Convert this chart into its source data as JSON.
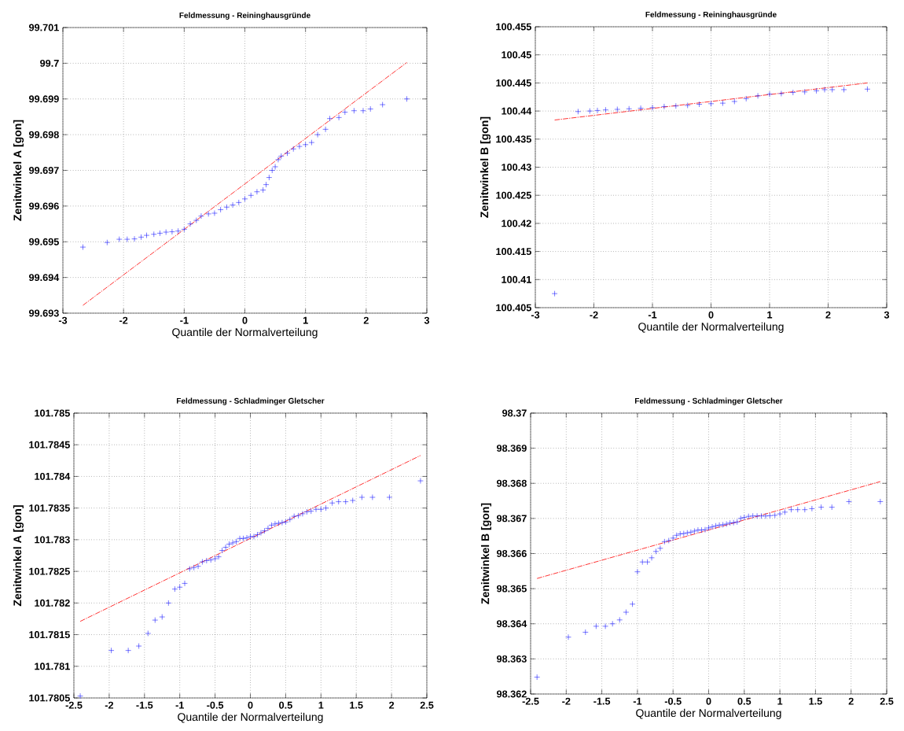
{
  "chart_data": [
    {
      "type": "scatter",
      "title": "Feldmessung - Reininghausgründe",
      "xlabel": "Quantile der Normalverteilung",
      "ylabel": "Zenitwinkel A [gon]",
      "xlim": [
        -3,
        3
      ],
      "ylim": [
        99.693,
        99.701
      ],
      "xticks": [
        -3,
        -2,
        -1,
        0,
        1,
        2,
        3
      ],
      "yticks": [
        99.693,
        99.694,
        99.695,
        99.696,
        99.697,
        99.698,
        99.699,
        99.7,
        99.701
      ],
      "grid": true,
      "series": [
        {
          "marker": "cross",
          "color": "#0000ff",
          "x": [
            -2.67,
            -2.27,
            -2.07,
            -1.94,
            -1.82,
            -1.71,
            -1.62,
            -1.5,
            -1.4,
            -1.3,
            -1.2,
            -1.1,
            -1.0,
            -0.9,
            -0.8,
            -0.72,
            -0.6,
            -0.5,
            -0.4,
            -0.3,
            -0.2,
            -0.1,
            0,
            0.1,
            0.2,
            0.3,
            0.35,
            0.4,
            0.45,
            0.5,
            0.55,
            0.6,
            0.7,
            0.8,
            0.9,
            1.0,
            1.1,
            1.2,
            1.33,
            1.4,
            1.55,
            1.65,
            1.8,
            1.95,
            2.07,
            2.27,
            2.67
          ],
          "values": [
            99.69485,
            99.69498,
            99.69507,
            99.69507,
            99.69508,
            99.69513,
            99.69518,
            99.69521,
            99.69524,
            99.69527,
            99.69528,
            99.6953,
            99.69535,
            99.6955,
            99.6956,
            99.69572,
            99.69578,
            99.6958,
            99.6959,
            99.69597,
            99.69603,
            99.6961,
            99.6962,
            99.6963,
            99.6964,
            99.69645,
            99.6966,
            99.6968,
            99.697,
            99.6971,
            99.6973,
            99.6974,
            99.69748,
            99.6976,
            99.69767,
            99.69772,
            99.69778,
            99.698,
            99.69815,
            99.69845,
            99.69848,
            99.69863,
            99.69867,
            99.69867,
            99.69872,
            99.69884,
            99.699
          ]
        },
        {
          "type": "line",
          "color": "#ff0000",
          "line_style": "dashdot",
          "x": [
            -2.67,
            2.67
          ],
          "values": [
            99.69322,
            99.70002
          ]
        }
      ]
    },
    {
      "type": "scatter",
      "title": "Feldmessung - Reininghausgründe",
      "xlabel": "Quantile der Normalverteilung",
      "ylabel": "Zenitwinkel B [gon]",
      "xlim": [
        -3,
        3
      ],
      "ylim": [
        100.405,
        100.455
      ],
      "xticks": [
        -3,
        -2,
        -1,
        0,
        1,
        2,
        3
      ],
      "yticks": [
        100.405,
        100.41,
        100.415,
        100.42,
        100.425,
        100.43,
        100.435,
        100.44,
        100.445,
        100.45,
        100.455
      ],
      "grid": true,
      "series": [
        {
          "marker": "cross",
          "color": "#0000ff",
          "x": [
            -2.67,
            -2.27,
            -2.07,
            -1.94,
            -1.8,
            -1.6,
            -1.4,
            -1.2,
            -1.0,
            -0.8,
            -0.6,
            -0.4,
            -0.2,
            0,
            0.2,
            0.4,
            0.6,
            0.8,
            1.0,
            1.2,
            1.4,
            1.6,
            1.8,
            1.94,
            2.07,
            2.27,
            2.67
          ],
          "values": [
            100.4075,
            100.4399,
            100.44,
            100.4401,
            100.4402,
            100.4403,
            100.4404,
            100.4405,
            100.4406,
            100.4408,
            100.4409,
            100.441,
            100.4412,
            100.4413,
            100.4414,
            100.4417,
            100.4422,
            100.4427,
            100.443,
            100.4431,
            100.4433,
            100.4434,
            100.4436,
            100.4438,
            100.4438,
            100.4438,
            100.4439
          ]
        },
        {
          "type": "line",
          "color": "#ff0000",
          "line_style": "dashdot",
          "x": [
            -2.67,
            2.67
          ],
          "values": [
            100.4384,
            100.445
          ]
        }
      ]
    },
    {
      "type": "scatter",
      "title": "Feldmessung - Schladminger Gletscher",
      "xlabel": "Quantile der Normalverteilung",
      "ylabel": "Zenitwinkel A [gon]",
      "xlim": [
        -2.5,
        2.5
      ],
      "ylim": [
        101.7805,
        101.785
      ],
      "xticks": [
        -2.5,
        -2,
        -1.5,
        -1,
        -0.5,
        0,
        0.5,
        1,
        1.5,
        2,
        2.5
      ],
      "yticks": [
        101.7805,
        101.781,
        101.7815,
        101.782,
        101.7825,
        101.783,
        101.7835,
        101.784,
        101.7845,
        101.785
      ],
      "grid": true,
      "series": [
        {
          "marker": "cross",
          "color": "#0000ff",
          "x": [
            -2.41,
            -1.97,
            -1.73,
            -1.58,
            -1.45,
            -1.35,
            -1.25,
            -1.16,
            -1.07,
            -1.0,
            -0.93,
            -0.86,
            -0.8,
            -0.74,
            -0.68,
            -0.62,
            -0.56,
            -0.5,
            -0.45,
            -0.4,
            -0.35,
            -0.3,
            -0.25,
            -0.2,
            -0.15,
            -0.1,
            -0.05,
            0,
            0.05,
            0.1,
            0.15,
            0.2,
            0.25,
            0.3,
            0.35,
            0.4,
            0.45,
            0.5,
            0.56,
            0.62,
            0.68,
            0.74,
            0.8,
            0.86,
            0.93,
            1.0,
            1.07,
            1.16,
            1.25,
            1.35,
            1.45,
            1.58,
            1.73,
            1.97,
            2.41
          ],
          "values": [
            101.78053,
            101.78125,
            101.78125,
            101.78132,
            101.78152,
            101.78173,
            101.78178,
            101.782,
            101.78222,
            101.78225,
            101.78231,
            101.78254,
            101.78256,
            101.78258,
            101.78265,
            101.78267,
            101.78268,
            101.7827,
            101.78273,
            101.78283,
            101.78288,
            101.78293,
            101.78295,
            101.78297,
            101.78302,
            101.78302,
            101.78303,
            101.78305,
            101.78305,
            101.78308,
            101.78311,
            101.78314,
            101.78318,
            101.78323,
            101.78325,
            101.78326,
            101.78327,
            101.78328,
            101.78332,
            101.78337,
            101.78338,
            101.78341,
            101.78344,
            101.78345,
            101.78348,
            101.78348,
            101.7835,
            101.78358,
            101.7836,
            101.7836,
            101.78362,
            101.78367,
            101.78367,
            101.78367,
            101.78393
          ]
        },
        {
          "type": "line",
          "color": "#ff0000",
          "line_style": "dashdot",
          "x": [
            -2.41,
            2.41
          ],
          "values": [
            101.78171,
            101.78433
          ]
        }
      ]
    },
    {
      "type": "scatter",
      "title": "Feldmessung - Schladminger Gletscher",
      "xlabel": "Quantile der Normalverteilung",
      "ylabel": "Zenitwinkel B [gon]",
      "xlim": [
        -2.5,
        2.5
      ],
      "ylim": [
        98.362,
        98.37
      ],
      "xticks": [
        -2.5,
        -2,
        -1.5,
        -1,
        -0.5,
        0,
        0.5,
        1,
        1.5,
        2,
        2.5
      ],
      "yticks": [
        98.362,
        98.363,
        98.364,
        98.365,
        98.366,
        98.367,
        98.368,
        98.369,
        98.37
      ],
      "grid": true,
      "series": [
        {
          "marker": "cross",
          "color": "#0000ff",
          "x": [
            -2.41,
            -1.97,
            -1.73,
            -1.58,
            -1.45,
            -1.35,
            -1.25,
            -1.16,
            -1.07,
            -1.0,
            -0.93,
            -0.86,
            -0.8,
            -0.74,
            -0.68,
            -0.62,
            -0.56,
            -0.5,
            -0.45,
            -0.4,
            -0.35,
            -0.3,
            -0.25,
            -0.2,
            -0.15,
            -0.1,
            -0.05,
            0,
            0.05,
            0.1,
            0.15,
            0.2,
            0.25,
            0.3,
            0.35,
            0.4,
            0.45,
            0.5,
            0.56,
            0.62,
            0.68,
            0.74,
            0.8,
            0.86,
            0.93,
            1.0,
            1.07,
            1.16,
            1.25,
            1.35,
            1.45,
            1.58,
            1.73,
            1.97,
            2.41
          ],
          "values": [
            98.36248,
            98.36362,
            98.36376,
            98.36393,
            98.36393,
            98.364,
            98.36411,
            98.36433,
            98.36456,
            98.36548,
            98.36576,
            98.36576,
            98.36588,
            98.36606,
            98.36615,
            98.36634,
            98.36637,
            98.36644,
            98.36652,
            98.36656,
            98.36657,
            98.36659,
            98.36661,
            98.36664,
            98.36667,
            98.36667,
            98.36668,
            98.36673,
            98.36676,
            98.36679,
            98.36681,
            98.36682,
            98.36684,
            98.36687,
            98.36688,
            98.3669,
            98.367,
            98.36703,
            98.36706,
            98.36707,
            98.36707,
            98.36707,
            98.36707,
            98.36708,
            98.36709,
            98.36713,
            98.36718,
            98.36725,
            98.36725,
            98.36725,
            98.36728,
            98.36732,
            98.36732,
            98.36748,
            98.36748
          ]
        },
        {
          "type": "line",
          "color": "#ff0000",
          "line_style": "dashdot",
          "x": [
            -2.41,
            2.41
          ],
          "values": [
            98.36529,
            98.36805
          ]
        }
      ]
    }
  ]
}
